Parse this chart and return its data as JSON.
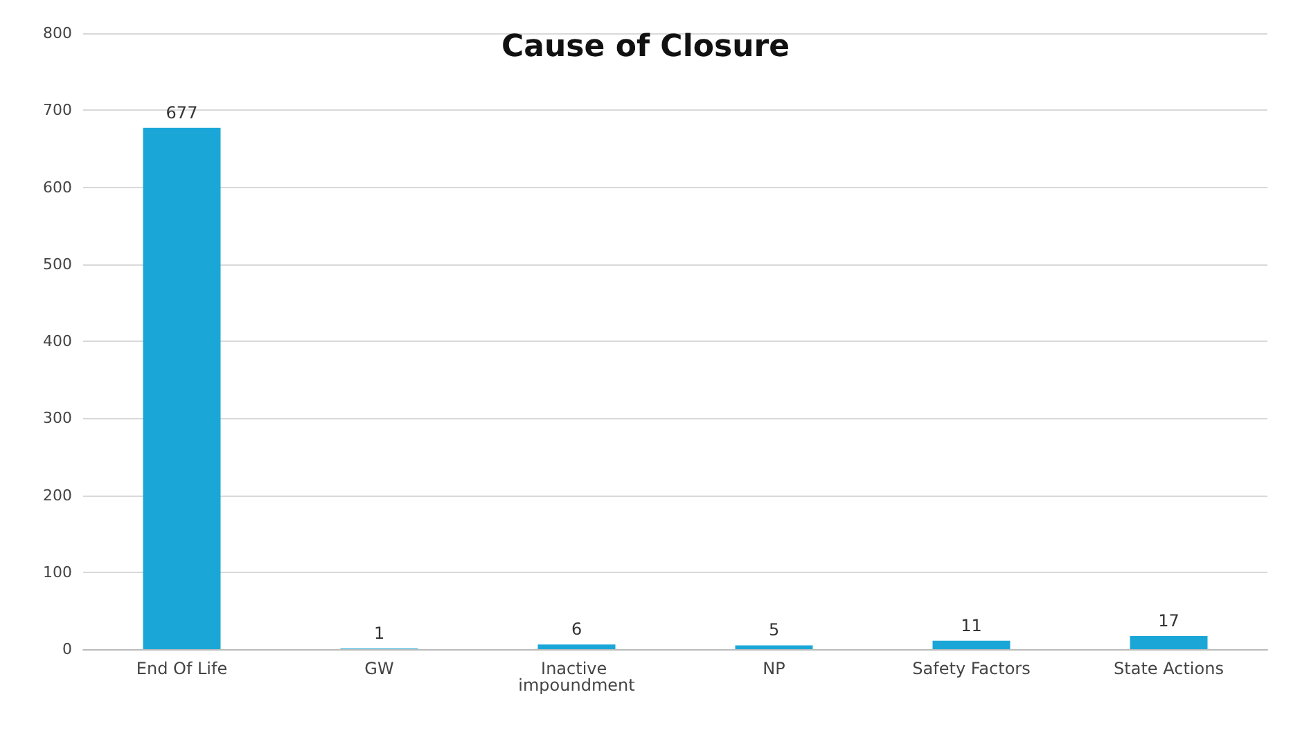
{
  "chart_data": {
    "type": "bar",
    "title": "Cause of Closure",
    "categories": [
      "End Of Life",
      "GW",
      "Inactive impoundment",
      "NP",
      "Safety Factors",
      "State Actions"
    ],
    "values": [
      677,
      1,
      6,
      5,
      11,
      17
    ],
    "color": "#1aa7d8",
    "ylim": [
      0,
      800
    ],
    "yticks": [
      0,
      100,
      200,
      300,
      400,
      500,
      600,
      700,
      800
    ],
    "grid": "y",
    "data_labels": true
  }
}
